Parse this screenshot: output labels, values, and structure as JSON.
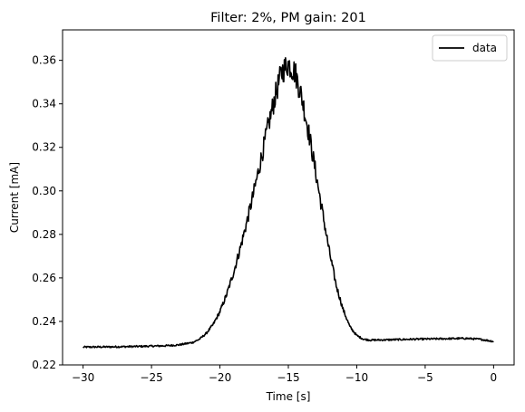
{
  "chart_data": {
    "type": "line",
    "title": "Filter: 2%, PM gain: 201",
    "xlabel": "Time [s]",
    "ylabel": "Current [mA]",
    "xlim": [
      -31.5,
      1.5
    ],
    "ylim": [
      0.22,
      0.374
    ],
    "xticks": [
      -30,
      -25,
      -20,
      -15,
      -10,
      -5,
      0
    ],
    "xtick_labels": [
      "−30",
      "−25",
      "−20",
      "−15",
      "−10",
      "−5",
      "0"
    ],
    "yticks": [
      0.22,
      0.24,
      0.26,
      0.28,
      0.3,
      0.32,
      0.34,
      0.36
    ],
    "ytick_labels": [
      "0.22",
      "0.24",
      "0.26",
      "0.28",
      "0.30",
      "0.32",
      "0.34",
      "0.36"
    ],
    "grid": false,
    "legend_position": "top-right",
    "series": [
      {
        "name": "data",
        "color": "#000000",
        "x": [
          -30,
          -28,
          -26,
          -24,
          -23,
          -22,
          -21.5,
          -21,
          -20.5,
          -20,
          -19.5,
          -19,
          -18.5,
          -18,
          -17.5,
          -17,
          -16.5,
          -16,
          -15.5,
          -15,
          -14.5,
          -14,
          -13.5,
          -13,
          -12.5,
          -12,
          -11.5,
          -11,
          -10.5,
          -10,
          -9.5,
          -9,
          -8,
          -6,
          -4,
          -2,
          -1,
          0
        ],
        "y": [
          0.2282,
          0.2283,
          0.2285,
          0.2288,
          0.2292,
          0.2303,
          0.2318,
          0.2345,
          0.2385,
          0.2445,
          0.2525,
          0.2625,
          0.274,
          0.2865,
          0.3,
          0.3145,
          0.329,
          0.3425,
          0.3545,
          0.3585,
          0.3545,
          0.3425,
          0.3265,
          0.3085,
          0.29,
          0.272,
          0.2565,
          0.2455,
          0.2375,
          0.2335,
          0.2318,
          0.2314,
          0.2315,
          0.2318,
          0.232,
          0.2322,
          0.2318,
          0.2308
        ]
      }
    ]
  }
}
